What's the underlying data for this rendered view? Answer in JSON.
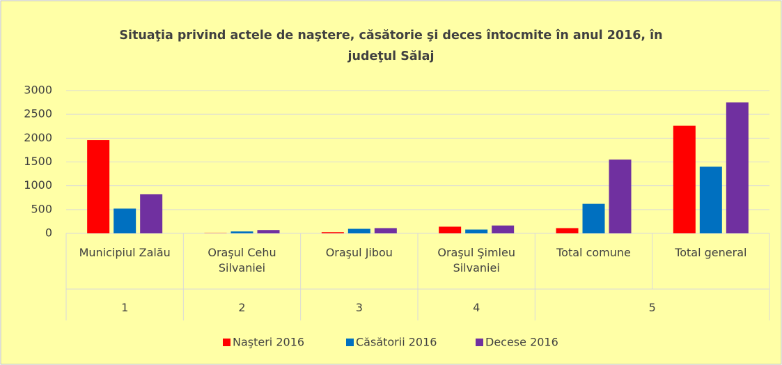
{
  "chart_data": {
    "type": "bar",
    "title": "Situaţia privind actele de naştere, căsătorie şi deces întocmite în anul 2016,  în judeţul Sălaj",
    "groups": [
      {
        "label": "1",
        "categories": [
          "Municipiul Zalău"
        ]
      },
      {
        "label": "2",
        "categories": [
          "Oraşul Cehu Silvaniei"
        ]
      },
      {
        "label": "3",
        "categories": [
          "Oraşul Jibou"
        ]
      },
      {
        "label": "4",
        "categories": [
          "Oraşul Şimleu Silvaniei"
        ]
      },
      {
        "label": "5",
        "categories": [
          "Total comune",
          "Total general"
        ]
      }
    ],
    "series": [
      {
        "name": "Naşteri 2016",
        "color": "#ff0000",
        "values": [
          1960,
          5,
          25,
          140,
          110,
          2260
        ]
      },
      {
        "name": "Căsătorii 2016",
        "color": "#0070c0",
        "values": [
          520,
          40,
          95,
          80,
          620,
          1400
        ]
      },
      {
        "name": "Decese  2016",
        "color": "#7030a0",
        "values": [
          820,
          70,
          110,
          165,
          1550,
          2750
        ]
      }
    ],
    "ylim": [
      0,
      3000
    ],
    "yticks": [
      0,
      500,
      1000,
      1500,
      2000,
      2500,
      3000
    ],
    "grid": true,
    "legend": "bottom"
  }
}
